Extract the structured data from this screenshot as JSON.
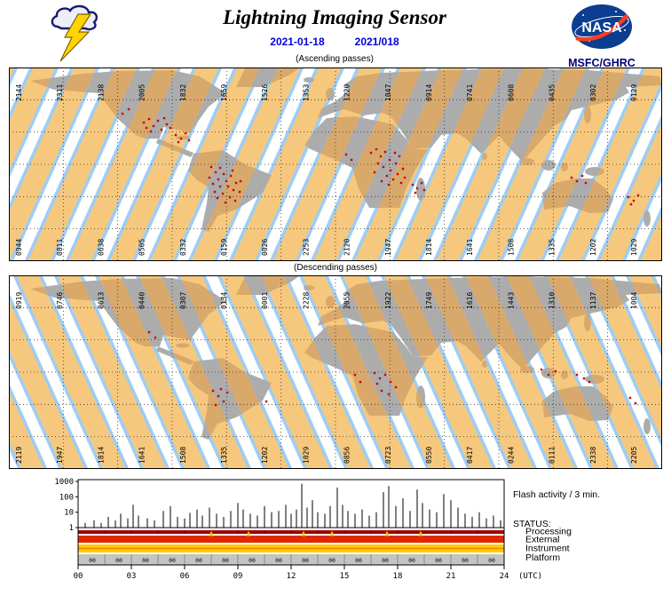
{
  "header": {
    "title": "Lightning Imaging Sensor",
    "date_dash": "2021-01-18",
    "date_doy": "2021/018",
    "logo_text": "NASA",
    "org": "MSFC/GHRC"
  },
  "ui_colors": {
    "date_text": "#0000D6",
    "org_text": "#000077",
    "nasa_blue": "#0B3D91",
    "nasa_red": "#FC3D21",
    "bolt_yellow": "#FFD400"
  },
  "maps": {
    "colors": {
      "ocean": "#9FCDF2",
      "stripe": "#FFFFFF",
      "swath": "#F6C87E",
      "land": "#ACACAC",
      "land_swath": "#D8A96B",
      "dot": "#CC0000",
      "grid": "#333333",
      "border": "#000000"
    },
    "ascending": {
      "caption": "(Ascending passes)",
      "top_labels": [
        "2144",
        "2311",
        "2138",
        "2005",
        "1832",
        "1659",
        "1526",
        "1353",
        "1220",
        "1047",
        "0914",
        "0741",
        "0608",
        "0435",
        "0302",
        "0129"
      ],
      "bottom_labels": [
        "0944",
        "0811",
        "0638",
        "0505",
        "0332",
        "0159",
        "0026",
        "2253",
        "2120",
        "1947",
        "1814",
        "1641",
        "1508",
        "1335",
        "1202",
        "1029"
      ],
      "dots": [
        [
          152,
          62
        ],
        [
          158,
          58
        ],
        [
          163,
          66
        ],
        [
          168,
          60
        ],
        [
          172,
          70
        ],
        [
          178,
          64
        ],
        [
          160,
          72
        ],
        [
          155,
          68
        ],
        [
          175,
          57
        ],
        [
          182,
          68
        ],
        [
          188,
          76
        ],
        [
          194,
          80
        ],
        [
          199,
          74
        ],
        [
          203,
          82
        ],
        [
          191,
          84
        ],
        [
          128,
          52
        ],
        [
          135,
          47
        ],
        [
          228,
          112
        ],
        [
          233,
          118
        ],
        [
          238,
          113
        ],
        [
          242,
          120
        ],
        [
          236,
          126
        ],
        [
          230,
          131
        ],
        [
          245,
          128
        ],
        [
          250,
          122
        ],
        [
          247,
          134
        ],
        [
          253,
          138
        ],
        [
          241,
          142
        ],
        [
          235,
          147
        ],
        [
          249,
          146
        ],
        [
          256,
          130
        ],
        [
          260,
          140
        ],
        [
          238,
          134
        ],
        [
          226,
          124
        ],
        [
          255,
          150
        ],
        [
          232,
          140
        ],
        [
          244,
          152
        ],
        [
          261,
          128
        ],
        [
          252,
          116
        ],
        [
          408,
          96
        ],
        [
          414,
          92
        ],
        [
          419,
          100
        ],
        [
          424,
          95
        ],
        [
          429,
          104
        ],
        [
          416,
          108
        ],
        [
          422,
          112
        ],
        [
          430,
          116
        ],
        [
          436,
          108
        ],
        [
          440,
          100
        ],
        [
          426,
          122
        ],
        [
          433,
          126
        ],
        [
          438,
          120
        ],
        [
          444,
          114
        ],
        [
          412,
          118
        ],
        [
          420,
          128
        ],
        [
          428,
          132
        ],
        [
          442,
          130
        ],
        [
          446,
          124
        ],
        [
          435,
          96
        ],
        [
          455,
          132
        ],
        [
          460,
          136
        ],
        [
          465,
          130
        ],
        [
          468,
          138
        ],
        [
          458,
          141
        ],
        [
          380,
          98
        ],
        [
          386,
          104
        ],
        [
          634,
          124
        ],
        [
          640,
          128
        ],
        [
          646,
          122
        ],
        [
          650,
          130
        ],
        [
          698,
          146
        ],
        [
          704,
          150
        ],
        [
          709,
          144
        ],
        [
          701,
          154
        ]
      ]
    },
    "descending": {
      "caption": "(Descending passes)",
      "top_labels": [
        "0919",
        "0746",
        "0613",
        "0440",
        "0307",
        "0134",
        "0001",
        "2228",
        "2055",
        "1922",
        "1749",
        "1616",
        "1443",
        "1310",
        "1137",
        "1004"
      ],
      "bottom_labels": [
        "2119",
        "1947",
        "1814",
        "1641",
        "1508",
        "1335",
        "1202",
        "1029",
        "0856",
        "0723",
        "0550",
        "0417",
        "0244",
        "0111",
        "2338",
        "2205"
      ],
      "dots": [
        [
          230,
          130
        ],
        [
          236,
          136
        ],
        [
          242,
          142
        ],
        [
          233,
          146
        ],
        [
          246,
          132
        ],
        [
          239,
          128
        ],
        [
          412,
          110
        ],
        [
          418,
          116
        ],
        [
          424,
          112
        ],
        [
          430,
          120
        ],
        [
          436,
          126
        ],
        [
          420,
          130
        ],
        [
          428,
          134
        ],
        [
          415,
          122
        ],
        [
          390,
          112
        ],
        [
          396,
          120
        ],
        [
          600,
          106
        ],
        [
          608,
          112
        ],
        [
          616,
          108
        ],
        [
          648,
          116
        ],
        [
          654,
          120
        ],
        [
          640,
          112
        ],
        [
          158,
          64
        ],
        [
          165,
          70
        ],
        [
          290,
          142
        ],
        [
          700,
          138
        ],
        [
          706,
          144
        ]
      ]
    }
  },
  "chart_data": {
    "type": "composite",
    "flash_activity": {
      "title": "Flash activity / 3 min.",
      "chart_type": "bar",
      "y_scale": "log",
      "y_ticks": [
        "1000",
        "100",
        "10",
        "1"
      ],
      "y_range": [
        1,
        1000
      ],
      "x_ticks": [
        "00",
        "03",
        "06",
        "09",
        "12",
        "15",
        "18",
        "21",
        "24"
      ],
      "x_unit": "(UTC)",
      "x_range_hours": [
        0,
        24
      ],
      "spike_color": "#000000",
      "spikes_hour_value": [
        [
          0.4,
          2
        ],
        [
          0.9,
          3
        ],
        [
          1.3,
          2
        ],
        [
          1.7,
          5
        ],
        [
          2.1,
          3
        ],
        [
          2.4,
          8
        ],
        [
          2.8,
          4
        ],
        [
          3.1,
          30
        ],
        [
          3.4,
          6
        ],
        [
          3.9,
          4
        ],
        [
          4.3,
          3
        ],
        [
          4.8,
          12
        ],
        [
          5.2,
          25
        ],
        [
          5.6,
          5
        ],
        [
          6.0,
          4
        ],
        [
          6.3,
          9
        ],
        [
          6.7,
          15
        ],
        [
          7.0,
          6
        ],
        [
          7.4,
          20
        ],
        [
          7.8,
          8
        ],
        [
          8.2,
          5
        ],
        [
          8.6,
          12
        ],
        [
          9.0,
          40
        ],
        [
          9.3,
          15
        ],
        [
          9.7,
          8
        ],
        [
          10.1,
          6
        ],
        [
          10.5,
          25
        ],
        [
          10.9,
          10
        ],
        [
          11.3,
          12
        ],
        [
          11.7,
          30
        ],
        [
          12.0,
          8
        ],
        [
          12.3,
          15
        ],
        [
          12.6,
          700
        ],
        [
          12.9,
          20
        ],
        [
          13.2,
          60
        ],
        [
          13.5,
          10
        ],
        [
          13.9,
          8
        ],
        [
          14.2,
          25
        ],
        [
          14.6,
          400
        ],
        [
          14.9,
          30
        ],
        [
          15.2,
          12
        ],
        [
          15.6,
          8
        ],
        [
          16.0,
          15
        ],
        [
          16.4,
          6
        ],
        [
          16.8,
          10
        ],
        [
          17.2,
          200
        ],
        [
          17.5,
          500
        ],
        [
          17.9,
          25
        ],
        [
          18.3,
          80
        ],
        [
          18.7,
          12
        ],
        [
          19.1,
          300
        ],
        [
          19.4,
          40
        ],
        [
          19.8,
          15
        ],
        [
          20.2,
          10
        ],
        [
          20.6,
          150
        ],
        [
          21.0,
          60
        ],
        [
          21.4,
          20
        ],
        [
          21.8,
          8
        ],
        [
          22.2,
          5
        ],
        [
          22.6,
          10
        ],
        [
          23.0,
          4
        ],
        [
          23.4,
          6
        ],
        [
          23.8,
          3
        ]
      ]
    },
    "status_title": "STATUS:",
    "status_rows": [
      {
        "label": "Processing",
        "color": "#A00000",
        "tick_color": "#5A0000"
      },
      {
        "label": "External",
        "color": "#E02800",
        "event_color": "#FFCC00",
        "event_hours": [
          7.5,
          9.6,
          12.7,
          14.3,
          17.4,
          19.3
        ]
      },
      {
        "label": "Instrument",
        "color": "#FFCC00",
        "stripe_color": "#FF8800"
      },
      {
        "label": "Platform",
        "color": "#C4C4C4",
        "orbit_label": "00",
        "orbit_label_hours": [
          0.4,
          1.9,
          3.4,
          4.9,
          6.4,
          7.9,
          9.4,
          10.9,
          12.4,
          13.9,
          15.4,
          16.9,
          18.4,
          19.9,
          21.4,
          22.9
        ]
      }
    ]
  }
}
